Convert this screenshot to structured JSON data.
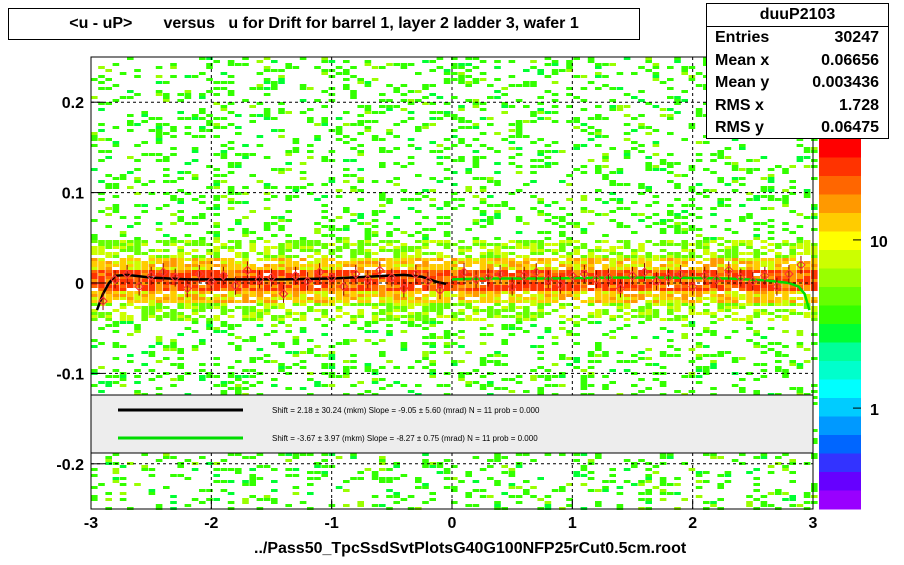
{
  "title": "<u - uP>       versus   u for Drift for barrel 1, layer 2 ladder 3, wafer 1",
  "stats": {
    "name": "duuP2103",
    "rows": [
      {
        "label": "Entries",
        "value": "30247"
      },
      {
        "label": "Mean x",
        "value": "0.06656"
      },
      {
        "label": "Mean y",
        "value": "0.003436"
      },
      {
        "label": "RMS x",
        "value": "1.728"
      },
      {
        "label": "RMS y",
        "value": "0.06475"
      }
    ]
  },
  "footer": "../Pass50_TpcSsdSvtPlotsG40G100NFP25rCut0.5cm.root",
  "colors": {
    "fit_black": "#000000",
    "fit_green": "#00dd00",
    "markers": "#ff3333",
    "legend_bg": "#ededed"
  },
  "chart_data": {
    "type": "heatmap",
    "xlim": [
      -3,
      3
    ],
    "ylim": [
      -0.25,
      0.25
    ],
    "x_ticks": [
      -3,
      -2,
      -1,
      0,
      1,
      2,
      3
    ],
    "y_ticks": [
      -0.2,
      -0.1,
      0,
      0.1,
      0.2
    ],
    "x_tick_labels": [
      "-3",
      "-2",
      "-1",
      "0",
      "1",
      "2",
      "3"
    ],
    "y_tick_labels": [
      "-0.2",
      "-0.1",
      "0",
      "0.1",
      "0.2"
    ],
    "grid": true,
    "color_scale": {
      "type": "log",
      "tick_labels": [
        "1",
        "10"
      ],
      "tick_values": [
        1,
        10
      ]
    },
    "legend": [
      {
        "color": "black",
        "text": "Shift =    2.18 ± 30.24 (mkm) Slope =    -9.05 ± 5.60 (mrad)  N = 11 prob = 0.000"
      },
      {
        "color": "green",
        "text": "Shift =    -3.67 ± 3.97 (mkm) Slope =    -8.27 ± 0.75 (mrad)  N = 11 prob = 0.000"
      }
    ],
    "fit_black": {
      "x": [
        -2.95,
        -2.9,
        -2.85,
        -2.8,
        -2.7,
        -2.5,
        -2.2,
        -1.8,
        -1.4,
        -1.0,
        -0.7,
        -0.4,
        -0.25,
        -0.12,
        -0.05
      ],
      "y": [
        -0.03,
        -0.012,
        0.0,
        0.008,
        0.009,
        0.006,
        0.004,
        0.004,
        0.004,
        0.005,
        0.007,
        0.009,
        0.007,
        0.001,
        -0.001
      ]
    },
    "fit_green": {
      "x": [
        0.0,
        0.3,
        0.8,
        1.3,
        1.8,
        2.3,
        2.6,
        2.8,
        2.88,
        2.93,
        2.97
      ],
      "y": [
        0.004,
        0.005,
        0.005,
        0.006,
        0.006,
        0.005,
        0.003,
        0.0,
        -0.004,
        -0.012,
        -0.03
      ]
    },
    "profile_points": {
      "x": [
        -2.9,
        -2.8,
        -2.7,
        -2.6,
        -2.5,
        -2.4,
        -2.3,
        -2.2,
        -2.1,
        -2.0,
        -1.9,
        -1.8,
        -1.7,
        -1.6,
        -1.5,
        -1.4,
        -1.3,
        -1.2,
        -1.1,
        -1.0,
        -0.9,
        -0.8,
        -0.7,
        -0.6,
        -0.5,
        -0.4,
        -0.3,
        -0.2,
        -0.1,
        0.1,
        0.2,
        0.3,
        0.4,
        0.5,
        0.6,
        0.7,
        0.8,
        0.9,
        1.0,
        1.1,
        1.2,
        1.3,
        1.4,
        1.5,
        1.6,
        1.7,
        1.8,
        1.9,
        2.0,
        2.1,
        2.2,
        2.3,
        2.4,
        2.5,
        2.6,
        2.7,
        2.8,
        2.9
      ],
      "y": [
        -0.02,
        0.004,
        0.01,
        -0.004,
        0.008,
        0.012,
        0.006,
        -0.006,
        0.01,
        0.002,
        0.008,
        -0.003,
        0.014,
        0.004,
        0.006,
        -0.012,
        0.008,
        0.002,
        0.012,
        0.006,
        -0.004,
        0.01,
        0.004,
        0.014,
        0.006,
        -0.006,
        0.01,
        0.002,
        -0.008,
        0.012,
        0.004,
        0.006,
        0.01,
        -0.004,
        0.008,
        0.012,
        0.004,
        -0.002,
        0.008,
        0.01,
        0.004,
        0.006,
        -0.006,
        0.008,
        0.012,
        0.002,
        0.006,
        0.01,
        -0.004,
        0.008,
        0.004,
        0.014,
        0.006,
        0.002,
        0.008,
        -0.004,
        0.01,
        0.02
      ]
    }
  }
}
